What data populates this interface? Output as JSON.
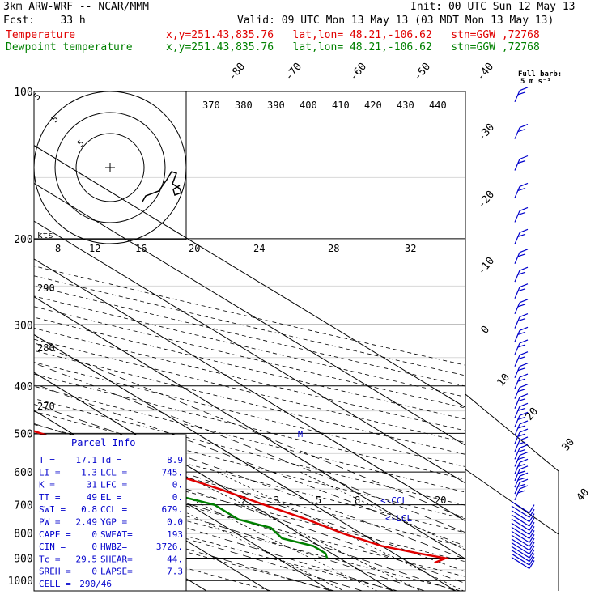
{
  "header": {
    "model": "3km ARW-WRF -- NCAR/MMM",
    "init": "Init: 00 UTC Sun 12 May 13",
    "fcst": "Fcst:    33 h",
    "valid": "Valid: 09 UTC Mon 13 May 13 (03 MDT Mon 13 May 13)",
    "temp_label": "Temperature",
    "temp_info": "x,y=251.43,835.76   lat,lon= 48.21,-106.62   stn=GGW ,72768",
    "dew_label": "Dewpoint temperature",
    "dew_info": "x,y=251.43,835.76   lat,lon= 48.21,-106.62   stn=GGW ,72768",
    "full_barb": "Full barb:",
    "full_barb_units": "5 m s⁻¹"
  },
  "colors": {
    "temperature": "#e00000",
    "dewpoint": "#008000",
    "parcel": "#0000cc",
    "barbs": "#0000cc"
  },
  "chart_data": {
    "type": "line",
    "ylabel": "",
    "xlabel": "",
    "pressure_ticks": [
      100,
      200,
      300,
      400,
      500,
      600,
      700,
      800,
      900,
      1000
    ],
    "temperature_ticks": [
      -80,
      -70,
      -60,
      -50,
      -40,
      -30,
      -20,
      -10,
      0,
      10,
      20,
      30,
      40
    ],
    "theta_ticks": [
      370,
      380,
      390,
      400,
      410,
      420,
      430,
      440
    ],
    "theta_left_ticks": [
      290,
      280,
      270
    ],
    "mixing_ratio_ticks": [
      2,
      3,
      5,
      8,
      20
    ],
    "hodo_speed_ticks": [
      8,
      12,
      16,
      20,
      24,
      28,
      32
    ],
    "hodo_ring_labels": [
      "5",
      "5",
      "5"
    ],
    "hodo_unit": "kts",
    "lcl_marker": "<-LCL",
    "ccl_marker": "<-CCL",
    "series": [
      {
        "name": "Temperature",
        "values": [
          {
            "p": 100,
            "t": -52
          },
          {
            "p": 120,
            "t": -58
          },
          {
            "p": 150,
            "t": -62
          },
          {
            "p": 170,
            "t": -63
          },
          {
            "p": 200,
            "t": -58
          },
          {
            "p": 250,
            "t": -48
          },
          {
            "p": 300,
            "t": -40
          },
          {
            "p": 350,
            "t": -32
          },
          {
            "p": 400,
            "t": -25
          },
          {
            "p": 450,
            "t": -20
          },
          {
            "p": 500,
            "t": -15
          },
          {
            "p": 600,
            "t": -5
          },
          {
            "p": 650,
            "t": -1
          },
          {
            "p": 700,
            "t": 2
          },
          {
            "p": 750,
            "t": 5
          },
          {
            "p": 800,
            "t": 7
          },
          {
            "p": 850,
            "t": 10
          },
          {
            "p": 880,
            "t": 14
          },
          {
            "p": 900,
            "t": 17
          },
          {
            "p": 920,
            "t": 14
          }
        ]
      },
      {
        "name": "Dewpoint temperature",
        "values": [
          {
            "p": 100,
            "t": -68
          },
          {
            "p": 150,
            "t": -75
          },
          {
            "p": 170,
            "t": -79
          },
          {
            "p": 200,
            "t": -80
          },
          {
            "p": 250,
            "t": -74
          },
          {
            "p": 300,
            "t": -59
          },
          {
            "p": 350,
            "t": -47
          },
          {
            "p": 400,
            "t": -38
          },
          {
            "p": 450,
            "t": -33
          },
          {
            "p": 500,
            "t": -27
          },
          {
            "p": 600,
            "t": -20
          },
          {
            "p": 650,
            "t": -12
          },
          {
            "p": 700,
            "t": -6
          },
          {
            "p": 750,
            "t": -6
          },
          {
            "p": 780,
            "t": -3
          },
          {
            "p": 820,
            "t": -4
          },
          {
            "p": 850,
            "t": -1
          },
          {
            "p": 880,
            "t": -1
          },
          {
            "p": 900,
            "t": -2
          }
        ]
      }
    ]
  },
  "parcel_info": {
    "title": "Parcel Info",
    "rows": [
      [
        "T  =",
        "17.1",
        "Td =",
        "8.9"
      ],
      [
        "LI =",
        "1.3",
        "LCL =",
        "745."
      ],
      [
        "K  =",
        "31",
        "LFC =",
        "0."
      ],
      [
        "TT =",
        "49",
        "EL  =",
        "0."
      ],
      [
        "SWI =",
        "0.8",
        "CCL =",
        "679."
      ],
      [
        "PW =",
        "2.49",
        "YGP =",
        "0.0"
      ],
      [
        "CAPE =",
        "0",
        "SWEAT=",
        "193"
      ],
      [
        "CIN  =",
        "0",
        "HWBZ=",
        "3726."
      ],
      [
        "Tc =",
        "29.5",
        "SHEAR=",
        "44."
      ],
      [
        "SREH =",
        "0",
        "LAPSE=",
        "7.3"
      ],
      [
        "CELL =",
        "290/46",
        "",
        ""
      ]
    ]
  }
}
